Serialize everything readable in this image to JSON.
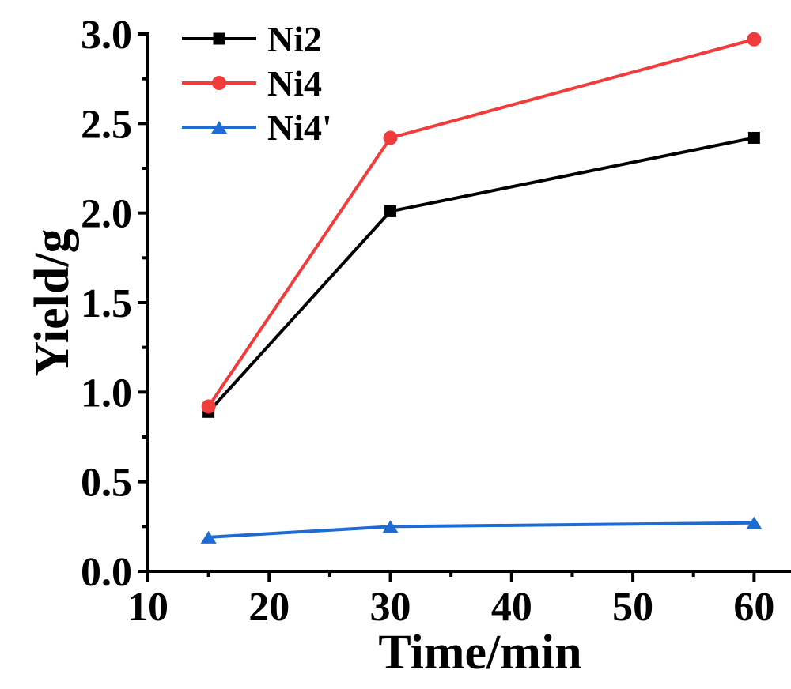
{
  "chart_data": {
    "type": "line",
    "title": "",
    "xlabel": "Time/min",
    "ylabel": "Yield/g",
    "x": [
      15,
      30,
      60
    ],
    "series": [
      {
        "name": "Ni2",
        "color": "#000000",
        "marker": "square",
        "values": [
          0.89,
          2.01,
          2.42
        ]
      },
      {
        "name": "Ni4",
        "color": "#f23b3b",
        "marker": "circle",
        "values": [
          0.92,
          2.42,
          2.97
        ]
      },
      {
        "name": "Ni4'",
        "color": "#1e6bd2",
        "marker": "triangle",
        "values": [
          0.19,
          0.25,
          0.27
        ]
      }
    ],
    "xlim": [
      10,
      65
    ],
    "ylim": [
      0,
      3.0
    ],
    "x_major_ticks": [
      10,
      20,
      30,
      40,
      50,
      60
    ],
    "x_tick_labels": [
      "10",
      "20",
      "30",
      "40",
      "50",
      "60"
    ],
    "x_minor_ticks": [
      15,
      25,
      35,
      45,
      55,
      65
    ],
    "y_major_ticks": [
      0.0,
      0.5,
      1.0,
      1.5,
      2.0,
      2.5,
      3.0
    ],
    "y_tick_labels": [
      "0.0",
      "0.5",
      "1.0",
      "1.5",
      "2.0",
      "2.5",
      "3.0"
    ],
    "y_minor_ticks": [
      0.25,
      0.75,
      1.25,
      1.75,
      2.25,
      2.75
    ],
    "grid": false,
    "legend_position": "top-left",
    "axis_color": "#000000",
    "background_color": "#ffffff"
  }
}
